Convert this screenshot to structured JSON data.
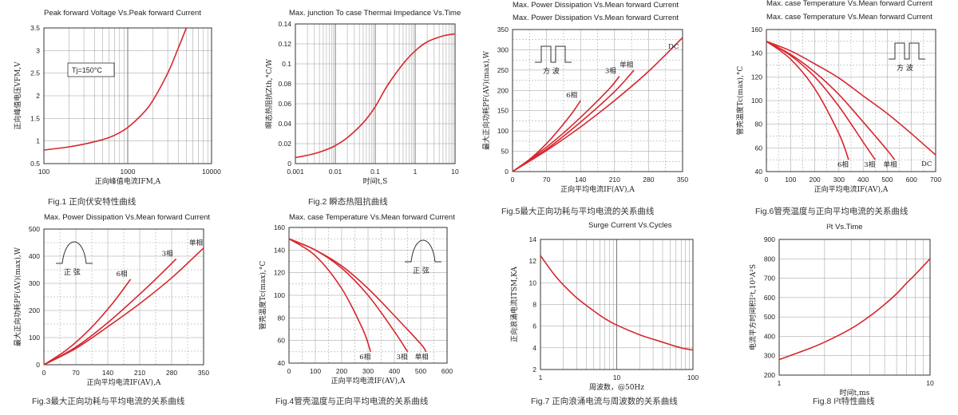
{
  "chart_data": [
    {
      "type": "line",
      "title": "Peak forward Voltage Vs.Peak forward Current",
      "caption": "Fig.1 正向伏安特性曲线",
      "xlabel": "正向峰值电流IFM,A",
      "ylabel": "正向峰值电压VFM,V",
      "xscale": "log",
      "xlim": [
        100,
        10000
      ],
      "ylim": [
        0.5,
        3.5
      ],
      "xticks": [
        "100",
        "1000",
        "10000"
      ],
      "yticks": [
        "0.5",
        "1",
        "1.5",
        "2",
        "2.5",
        "3",
        "3.5"
      ],
      "annotation": "Tj=150°C",
      "grid": true,
      "series": [
        {
          "x": [
            100,
            200,
            300,
            500,
            700,
            1000,
            1500,
            2000,
            3000,
            4000,
            5000
          ],
          "y": [
            0.8,
            0.87,
            0.93,
            1.03,
            1.13,
            1.3,
            1.6,
            1.9,
            2.5,
            3.05,
            3.5
          ]
        }
      ]
    },
    {
      "type": "line",
      "title": "Max. junction To case Thermai Impedance Vs.Time",
      "caption": "Fig.2 瞬态热阻抗曲线",
      "xlabel": "时间t,S",
      "ylabel": "瞬态热阻抗Zth,°C/W",
      "xscale": "log",
      "xlim": [
        0.001,
        10
      ],
      "ylim": [
        0,
        0.14
      ],
      "xticks": [
        "0.001",
        "0.01",
        "0.1",
        "1",
        "10"
      ],
      "yticks": [
        "0",
        "0.02",
        "0.04",
        "0.06",
        "0.08",
        "0.1",
        "0.12",
        "0.14"
      ],
      "grid": true,
      "series": [
        {
          "x": [
            0.001,
            0.003,
            0.006,
            0.01,
            0.02,
            0.05,
            0.1,
            0.2,
            0.5,
            1,
            2,
            5,
            10
          ],
          "y": [
            0.006,
            0.01,
            0.014,
            0.018,
            0.026,
            0.041,
            0.057,
            0.078,
            0.1,
            0.113,
            0.122,
            0.128,
            0.13
          ]
        }
      ]
    },
    {
      "type": "line",
      "title": "Max. Power Dissipation Vs.Mean forward Current",
      "title2": "Max. Power Dissipation Vs.Mean forward Current",
      "caption": "Fig.5最大正向功耗与平均电流的关系曲线",
      "xlabel": "正向平均电流IF(AV),A",
      "ylabel": "最大正向功耗PF(AV)(max),W",
      "xlim": [
        0,
        350
      ],
      "ylim": [
        0,
        350
      ],
      "xticks": [
        "0",
        "70",
        "140",
        "210",
        "280",
        "350"
      ],
      "yticks": [
        "0",
        "50",
        "100",
        "150",
        "200",
        "250",
        "300",
        "350"
      ],
      "inset_label": "方 波",
      "grid": true,
      "series": [
        {
          "name": "6相",
          "x": [
            0,
            40,
            80,
            120,
            140
          ],
          "y": [
            0,
            35,
            82,
            140,
            175
          ]
        },
        {
          "name": "3相",
          "x": [
            0,
            50,
            100,
            150,
            200,
            220
          ],
          "y": [
            0,
            42,
            90,
            145,
            205,
            235
          ]
        },
        {
          "name": "单相",
          "x": [
            0,
            70,
            140,
            210,
            250
          ],
          "y": [
            0,
            55,
            122,
            197,
            250
          ]
        },
        {
          "name": "DC",
          "x": [
            0,
            70,
            140,
            210,
            280,
            350
          ],
          "y": [
            0,
            52,
            110,
            175,
            247,
            330
          ]
        }
      ]
    },
    {
      "type": "line",
      "title": "Max. case Temperature Vs.Mean forward Current",
      "title2": "Max. case Temperature Vs.Mean forward Current",
      "caption": "Fig.6管壳温度与正向平均电流的关系曲线",
      "xlabel": "正向平均电流IF(AV),A",
      "ylabel": "管壳温度Tc(max),°C",
      "xlim": [
        0,
        700
      ],
      "ylim": [
        40,
        160
      ],
      "xticks": [
        "0",
        "100",
        "200",
        "300",
        "400",
        "500",
        "600",
        "700"
      ],
      "yticks": [
        "40",
        "60",
        "80",
        "100",
        "120",
        "140",
        "160"
      ],
      "inset_label": "方 波",
      "grid": true,
      "series": [
        {
          "name": "6相",
          "x": [
            0,
            100,
            200,
            300,
            340
          ],
          "y": [
            150,
            135,
            110,
            72,
            50
          ]
        },
        {
          "name": "3相",
          "x": [
            0,
            100,
            200,
            300,
            400,
            450
          ],
          "y": [
            150,
            138,
            120,
            95,
            65,
            50
          ]
        },
        {
          "name": "单相",
          "x": [
            0,
            100,
            200,
            300,
            400,
            500,
            530
          ],
          "y": [
            150,
            139,
            124,
            105,
            82,
            58,
            50
          ]
        },
        {
          "name": "DC",
          "x": [
            0,
            100,
            200,
            300,
            400,
            500,
            600,
            700
          ],
          "y": [
            150,
            142,
            131,
            119,
            104,
            89,
            72,
            54
          ]
        }
      ]
    },
    {
      "type": "line",
      "title": "Max. Power Dissipation Vs.Mean forward Current",
      "caption": "Fig.3最大正向功耗与平均电流的关系曲线",
      "xlabel": "正向平均电流IF(AV),A",
      "ylabel": "最大正向功耗PF(AV)(max),W",
      "xlim": [
        0,
        350
      ],
      "ylim": [
        0,
        500
      ],
      "xticks": [
        "0",
        "70",
        "140",
        "210",
        "280",
        "350"
      ],
      "yticks": [
        "0",
        "100",
        "200",
        "300",
        "400",
        "500"
      ],
      "inset_label": "正 弦",
      "grid": true,
      "series": [
        {
          "name": "6相",
          "x": [
            0,
            50,
            100,
            150,
            190
          ],
          "y": [
            0,
            55,
            130,
            225,
            315
          ]
        },
        {
          "name": "3相",
          "x": [
            0,
            70,
            140,
            210,
            260,
            290
          ],
          "y": [
            0,
            65,
            155,
            260,
            340,
            390
          ]
        },
        {
          "name": "单相",
          "x": [
            0,
            70,
            140,
            210,
            280,
            350
          ],
          "y": [
            0,
            60,
            140,
            225,
            320,
            430
          ]
        }
      ]
    },
    {
      "type": "line",
      "title": "Max. case Temperature Vs.Mean forward Current",
      "caption": "Fig.4管壳温度与正向平均电流的关系曲线",
      "xlabel": "正向平均电流IF(AV),A",
      "ylabel": "管壳温度Tc(max),°C",
      "xlim": [
        0,
        600
      ],
      "ylim": [
        40,
        160
      ],
      "xticks": [
        "0",
        "100",
        "200",
        "300",
        "400",
        "500",
        "600"
      ],
      "yticks": [
        "40",
        "60",
        "80",
        "100",
        "120",
        "140",
        "160"
      ],
      "inset_label": "正 弦",
      "grid": true,
      "series": [
        {
          "name": "6相",
          "x": [
            0,
            100,
            200,
            280,
            310
          ],
          "y": [
            150,
            135,
            106,
            70,
            50
          ]
        },
        {
          "name": "3相",
          "x": [
            0,
            100,
            200,
            300,
            400,
            450
          ],
          "y": [
            150,
            140,
            124,
            100,
            68,
            50
          ]
        },
        {
          "name": "单相",
          "x": [
            0,
            100,
            200,
            300,
            400,
            500,
            520
          ],
          "y": [
            150,
            140,
            126,
            106,
            82,
            57,
            50
          ]
        }
      ]
    },
    {
      "type": "line",
      "title": "Surge Current Vs.Cycles",
      "caption": "Fig.7 正向浪涌电流与周波数的关系曲线",
      "xlabel": "周波数，@50Hz",
      "ylabel": "正向浪涌电流ITSM,KA",
      "xscale": "log",
      "xlim": [
        1,
        100
      ],
      "ylim": [
        2,
        14
      ],
      "xticks": [
        "1",
        "10",
        "100"
      ],
      "yticks": [
        "2",
        "4",
        "6",
        "8",
        "10",
        "12",
        "14"
      ],
      "grid": true,
      "series": [
        {
          "x": [
            1,
            1.5,
            2,
            3,
            5,
            7,
            10,
            20,
            30,
            50,
            70,
            100
          ],
          "y": [
            12.5,
            10.8,
            9.8,
            8.6,
            7.4,
            6.7,
            6.1,
            5.2,
            4.8,
            4.3,
            4.0,
            3.8
          ]
        }
      ]
    },
    {
      "type": "line",
      "title": "I²t Vs.Time",
      "caption": "Fig.8 I²t特性曲线",
      "xlabel": "时间t,ms",
      "ylabel": "电流平方时间积I²t,10³A²S",
      "xscale": "log",
      "xlim": [
        1,
        10
      ],
      "ylim": [
        200,
        900
      ],
      "xticks": [
        "1",
        "10"
      ],
      "yticks": [
        "200",
        "300",
        "400",
        "500",
        "600",
        "700",
        "800",
        "900"
      ],
      "grid": true,
      "series": [
        {
          "x": [
            1,
            1.5,
            2,
            3,
            4,
            5,
            6,
            7,
            8,
            10
          ],
          "y": [
            280,
            330,
            370,
            440,
            505,
            565,
            620,
            675,
            720,
            800
          ]
        }
      ]
    }
  ]
}
